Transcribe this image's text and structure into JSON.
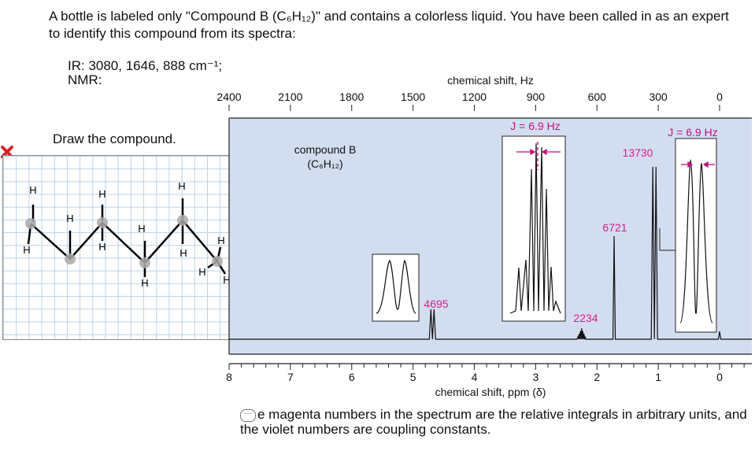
{
  "question": {
    "text": "A bottle is labeled only \"Compound B (C₆H₁₂)\" and contains a colorless liquid. You have been called in as an expert to identify this compound from its spectra:",
    "ir": "IR: 3080, 1646, 888 cm⁻¹;",
    "nmr": "NMR:"
  },
  "drawing": {
    "prompt": "Draw the compound.",
    "status_icon": "red-x-icon"
  },
  "footnote": {
    "icon": "comment-icon",
    "text": "e magenta numbers in the spectrum are the relative integrals in arbitrary units, and the violet numbers are coupling constants."
  },
  "colors": {
    "plot_background": "#d3ddf0",
    "magenta": "#d6208a",
    "violet": "#c2127f",
    "error_red": "#d62128"
  },
  "chart_data": {
    "type": "line",
    "title": "compound B",
    "subtitle": "(C₆H₁₂)",
    "xlabel": "chemical shift, ppm (δ)",
    "x2label": "chemical shift, Hz",
    "xlim": [
      8,
      0
    ],
    "x2lim": [
      2400,
      0
    ],
    "x_ticks": [
      8,
      7,
      6,
      5,
      4,
      3,
      2,
      1,
      0
    ],
    "x2_ticks": [
      2400,
      2100,
      1800,
      1500,
      1200,
      900,
      600,
      300,
      0
    ],
    "grid": false,
    "peaks": [
      {
        "shift": 4.67,
        "integral": "4695",
        "pattern": "doublet"
      },
      {
        "shift": 2.25,
        "integral": "2234",
        "pattern": "septet"
      },
      {
        "shift": 1.72,
        "integral": "6721",
        "pattern": "singlet"
      },
      {
        "shift": 1.05,
        "integral": "13730",
        "pattern": "doublet"
      },
      {
        "shift": 0.0,
        "integral": "",
        "pattern": "singlet"
      }
    ],
    "coupling_constants": [
      "J = 6.9 Hz",
      "J = 6.9 Hz"
    ]
  }
}
